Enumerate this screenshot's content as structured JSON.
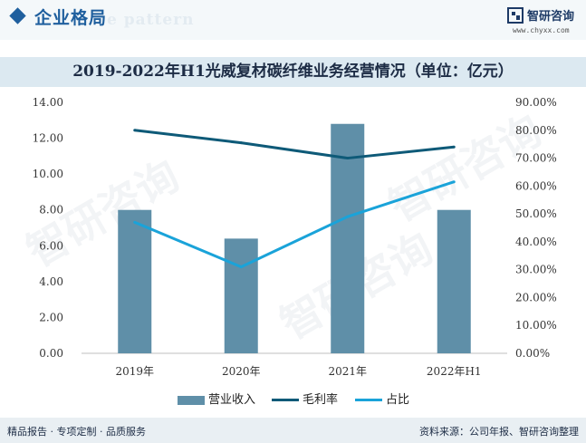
{
  "header": {
    "section_title": "企业格局",
    "ghost_text": "e pattern",
    "logo_name": "智研咨询",
    "logo_url": "www.chyxx.com"
  },
  "chart_data": {
    "type": "bar",
    "title": "2019-2022年H1光威复材碳纤维业务经营情况（单位：亿元）",
    "categories": [
      "2019年",
      "2020年",
      "2021年",
      "2022年H1"
    ],
    "series": [
      {
        "name": "营业收入",
        "type": "bar",
        "axis": "left",
        "values": [
          8.0,
          6.4,
          12.8,
          8.0
        ],
        "color": "#5f8fa8"
      },
      {
        "name": "毛利率",
        "type": "line",
        "axis": "right",
        "values": [
          80.0,
          75.5,
          70.0,
          74.0
        ],
        "color": "#0e5a78"
      },
      {
        "name": "占比",
        "type": "line",
        "axis": "right",
        "values": [
          47.0,
          31.0,
          49.0,
          61.5
        ],
        "color": "#1aa3d9"
      }
    ],
    "y_left": {
      "min": 0,
      "max": 14,
      "step": 2,
      "tick_labels": [
        "0.00",
        "2.00",
        "4.00",
        "6.00",
        "8.00",
        "10.00",
        "12.00",
        "14.00"
      ]
    },
    "y_right": {
      "min": 0,
      "max": 90,
      "step": 10,
      "tick_labels": [
        "0.00%",
        "10.00%",
        "20.00%",
        "30.00%",
        "40.00%",
        "50.00%",
        "60.00%",
        "70.00%",
        "80.00%",
        "90.00%"
      ]
    },
    "grid": false,
    "legend_position": "bottom"
  },
  "watermark_text": "智研咨询",
  "footer": {
    "left": "精品报告 · 专项定制 · 品质服务",
    "right": "资料来源：公司年报、智研咨询整理"
  }
}
